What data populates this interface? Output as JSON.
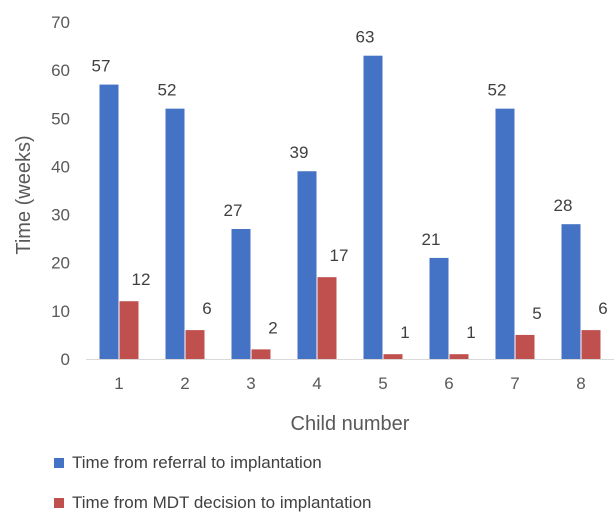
{
  "chart_data": {
    "type": "bar",
    "title": "",
    "xlabel": "Child number",
    "ylabel": "Time (weeks)",
    "ylim": [
      0,
      70
    ],
    "yticks": [
      0,
      10,
      20,
      30,
      40,
      50,
      60,
      70
    ],
    "categories": [
      "1",
      "2",
      "3",
      "4",
      "5",
      "6",
      "7",
      "8"
    ],
    "series": [
      {
        "name": "Time from referral to implantation",
        "color": "#4472C4",
        "values": [
          57,
          52,
          27,
          39,
          63,
          21,
          52,
          28
        ]
      },
      {
        "name": "Time from MDT decision to implantation",
        "color": "#C0504D",
        "values": [
          12,
          6,
          2,
          17,
          1,
          1,
          5,
          6
        ]
      }
    ],
    "grid": false,
    "legend": "bottom",
    "data_labels": true
  }
}
